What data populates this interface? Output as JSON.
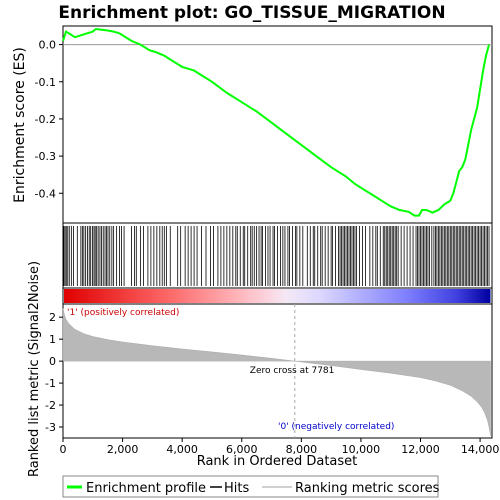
{
  "chart_data": {
    "type": "line",
    "title": "Enrichment plot: GO_TISSUE_MIGRATION",
    "xlabel": "Rank in Ordered Dataset",
    "ylabel_top": "Enrichment score (ES)",
    "ylabel_bottom": "Ranked list metric (Signal2Noise)",
    "xlim": [
      0,
      14400
    ],
    "es_ylim": [
      -0.48,
      0.05
    ],
    "metric_ylim": [
      -3.5,
      2.6
    ],
    "x_ticks": [
      0,
      2000,
      4000,
      6000,
      8000,
      10000,
      12000,
      14000
    ],
    "x_tick_labels": [
      "0",
      "2,000",
      "4,000",
      "6,000",
      "8,000",
      "10,000",
      "12,000",
      "14,000"
    ],
    "es_ticks": [
      0.0,
      -0.1,
      -0.2,
      -0.3,
      -0.4
    ],
    "es_tick_labels": [
      "0.0",
      "-0.1",
      "-0.2",
      "-0.3",
      "-0.4"
    ],
    "metric_ticks": [
      2,
      1,
      0,
      -1,
      -2,
      -3
    ],
    "metric_tick_labels": [
      "2",
      "1",
      "0",
      "-1",
      "-2",
      "-3"
    ],
    "enrichment_profile": {
      "x": [
        0,
        100,
        200,
        400,
        600,
        800,
        1000,
        1100,
        1300,
        1500,
        1700,
        1900,
        2100,
        2300,
        2600,
        2900,
        3100,
        3400,
        3600,
        3800,
        4000,
        4200,
        4400,
        5000,
        5500,
        6000,
        6500,
        7000,
        7500,
        8000,
        8500,
        9000,
        9500,
        9800,
        10000,
        10500,
        11000,
        11300,
        11600,
        11800,
        11950,
        12050,
        12200,
        12400,
        12600,
        12800,
        13000,
        13100,
        13200,
        13300,
        13400,
        13500,
        13600,
        13700,
        13800,
        13900,
        14000,
        14100,
        14200,
        14300
      ],
      "y": [
        0.01,
        0.035,
        0.03,
        0.02,
        0.025,
        0.03,
        0.035,
        0.042,
        0.04,
        0.038,
        0.035,
        0.03,
        0.02,
        0.01,
        0.0,
        -0.015,
        -0.02,
        -0.03,
        -0.04,
        -0.05,
        -0.06,
        -0.065,
        -0.07,
        -0.1,
        -0.13,
        -0.155,
        -0.18,
        -0.21,
        -0.24,
        -0.27,
        -0.3,
        -0.33,
        -0.355,
        -0.375,
        -0.385,
        -0.41,
        -0.435,
        -0.445,
        -0.45,
        -0.46,
        -0.46,
        -0.445,
        -0.445,
        -0.452,
        -0.445,
        -0.43,
        -0.42,
        -0.4,
        -0.37,
        -0.34,
        -0.33,
        -0.31,
        -0.27,
        -0.23,
        -0.2,
        -0.17,
        -0.12,
        -0.07,
        -0.03,
        0.0
      ]
    },
    "hits": [
      0,
      30,
      70,
      110,
      160,
      210,
      280,
      350,
      480,
      600,
      650,
      700,
      760,
      820,
      880,
      930,
      990,
      1040,
      1080,
      1130,
      1180,
      1240,
      1290,
      1350,
      1410,
      1460,
      1510,
      1570,
      1640,
      1700,
      1800,
      1900,
      1960,
      2050,
      2300,
      2400,
      2460,
      2600,
      2700,
      2850,
      2950,
      3050,
      3150,
      3250,
      3330,
      3400,
      3470,
      3600,
      3850,
      3950,
      4100,
      4200,
      4300,
      4400,
      4500,
      4650,
      4800,
      4950,
      5050,
      5200,
      5300,
      5400,
      5500,
      5600,
      5700,
      5800,
      5850,
      5950,
      6050,
      6100,
      6200,
      6300,
      6350,
      6420,
      6500,
      6580,
      6650,
      6700,
      6800,
      6880,
      6950,
      7050,
      7100,
      7200,
      7300,
      7380,
      7450,
      7550,
      7600,
      7700,
      7800,
      7850,
      7950,
      8050,
      8200,
      8300,
      8400,
      8450,
      8550,
      8650,
      8700,
      8800,
      8900,
      9000,
      9050,
      9150,
      9250,
      9300,
      9350,
      9400,
      9450,
      9500,
      9550,
      9600,
      9650,
      9700,
      9750,
      9800,
      9850,
      9950,
      10050,
      10150,
      10300,
      10400,
      10500,
      10550,
      10650,
      10750,
      10800,
      10850,
      10900,
      10950,
      11000,
      11050,
      11100,
      11150,
      11200,
      11250,
      11350,
      11450,
      11550,
      11650,
      11750,
      11850,
      11900,
      11950,
      12000,
      12050,
      12100,
      12150,
      12200,
      12250,
      12300,
      12380,
      12450,
      12500,
      12550,
      12600,
      12650,
      12700,
      12750,
      12800,
      12850,
      12900,
      12950,
      13000,
      13050,
      13100,
      13150,
      13200,
      13250,
      13300,
      13350,
      13400,
      13450,
      13500,
      13550,
      13600,
      13650,
      13700,
      13750,
      13800,
      13850,
      13900,
      13950,
      14000,
      14050,
      14100,
      14150,
      14200,
      14250,
      14300
    ],
    "metric_curve": {
      "x": [
        0,
        50,
        100,
        200,
        400,
        700,
        1000,
        1500,
        2000,
        3000,
        4000,
        5000,
        6000,
        7000,
        7781,
        8500,
        9000,
        10000,
        11000,
        12000,
        12500,
        13000,
        13400,
        13700,
        13900,
        14050,
        14150,
        14250,
        14300,
        14350
      ],
      "y": [
        2.4,
        2.1,
        1.9,
        1.7,
        1.45,
        1.25,
        1.12,
        0.98,
        0.87,
        0.7,
        0.55,
        0.42,
        0.28,
        0.13,
        0.0,
        -0.12,
        -0.2,
        -0.38,
        -0.55,
        -0.75,
        -0.9,
        -1.1,
        -1.35,
        -1.6,
        -1.85,
        -2.1,
        -2.35,
        -2.7,
        -3.0,
        -3.4
      ]
    },
    "zero_cross_label": "Zero cross at 7781",
    "zero_cross_x": 7781,
    "pos_label": "'1' (positively correlated)",
    "neg_label": "'0' (negatively correlated)",
    "legend": [
      {
        "label": "Enrichment profile",
        "color": "#00ff00"
      },
      {
        "label": "Hits",
        "color": "#000000"
      },
      {
        "label": "Ranking metric scores",
        "color": "#c0c0c0"
      }
    ],
    "colors": {
      "profile": "#00ff00",
      "metric_fill": "#b8b8b8",
      "pos_label": "#cc0000",
      "neg_label": "#0000cc",
      "zero_line": "#aaaaaa"
    }
  }
}
